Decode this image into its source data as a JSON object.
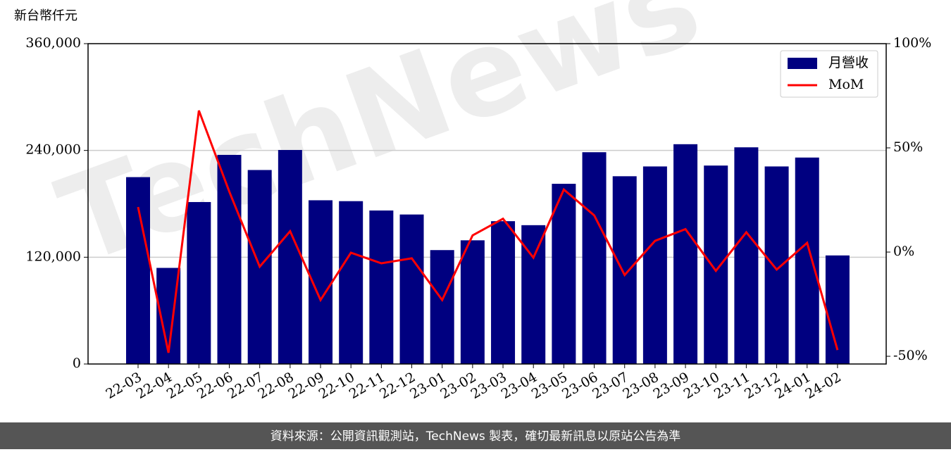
{
  "chart_data": {
    "type": "bar_line",
    "y_label": "新台幣仟元",
    "watermark": "TechNews",
    "footer": "資料來源：公開資訊觀測站，TechNews 製表，確切最新訊息以原站公告為準",
    "categories": [
      "22-03",
      "22-04",
      "22-05",
      "22-06",
      "22-07",
      "22-08",
      "22-09",
      "22-10",
      "22-11",
      "22-12",
      "23-01",
      "23-02",
      "23-03",
      "23-04",
      "23-05",
      "23-06",
      "23-07",
      "23-08",
      "23-09",
      "23-10",
      "23-11",
      "23-12",
      "24-01",
      "24-02"
    ],
    "series": [
      {
        "name": "月營收",
        "type": "bar",
        "color": "#000080",
        "values": [
          210000,
          108000,
          182000,
          235000,
          218000,
          240500,
          184000,
          183000,
          172500,
          168000,
          128000,
          139000,
          160500,
          156000,
          202500,
          238000,
          211000,
          222000,
          247000,
          223000,
          243500,
          222000,
          232000,
          122000
        ]
      },
      {
        "name": "MoM",
        "type": "line",
        "axis": "y2",
        "color": "#ff0000",
        "values": [
          21.6,
          -48.3,
          67.9,
          29,
          -7,
          10,
          -23,
          -0.3,
          -5.4,
          -3,
          -23,
          8,
          16,
          -2.7,
          30,
          17.6,
          -11,
          5.4,
          11,
          -9,
          9.5,
          -8.4,
          4.4,
          -47
        ]
      }
    ],
    "ylim": [
      0,
      360000
    ],
    "yticks": [
      0,
      {
        "value": 120000,
        "label": "120,000"
      },
      {
        "value": 240000,
        "label": "240,000"
      },
      {
        "value": 360000,
        "label": "360,000"
      }
    ],
    "y2lim": [
      -53.7,
      100
    ],
    "y2ticks": [
      {
        "value": -50,
        "label": "-50%"
      },
      {
        "value": 0,
        "label": "0%"
      },
      {
        "value": 50,
        "label": "50%"
      },
      {
        "value": 100,
        "label": "100%"
      }
    ],
    "grid": true,
    "legend": "upper right"
  }
}
